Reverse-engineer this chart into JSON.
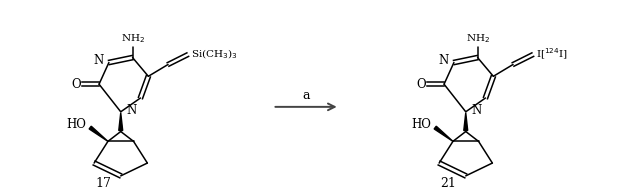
{
  "background_color": "#ffffff",
  "arrow_label": "a",
  "compound_left_num": "17",
  "compound_right_num": "21",
  "figsize": [
    6.2,
    1.95
  ],
  "dpi": 100
}
